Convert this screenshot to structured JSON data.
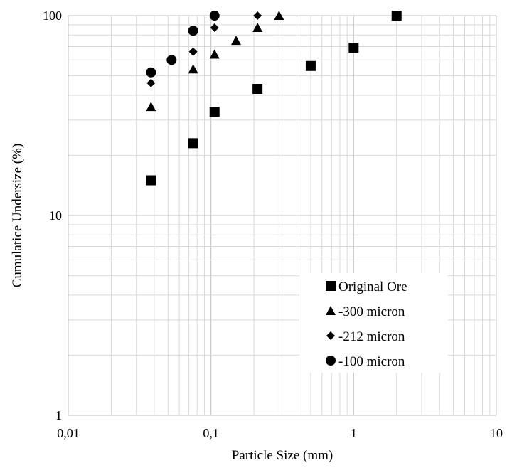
{
  "chart_data": {
    "type": "scatter",
    "title": "",
    "xlabel": "Particle Size (mm)",
    "ylabel": "Cumulatice Undersize (%)",
    "xscale": "log",
    "yscale": "log",
    "xlim": [
      0.01,
      10
    ],
    "ylim": [
      1,
      100
    ],
    "x_tick_values": [
      0.01,
      0.1,
      1,
      10
    ],
    "x_tick_labels": [
      "0,01",
      "0,1",
      "1",
      "10"
    ],
    "y_tick_values": [
      1,
      10,
      100
    ],
    "y_tick_labels": [
      "1",
      "10",
      "100"
    ],
    "grid": "major and minor",
    "legend_position": "bottom-right",
    "series": [
      {
        "name": "Original Ore",
        "marker": "square",
        "x": [
          0.038,
          0.075,
          0.106,
          0.212,
          0.5,
          1.0,
          2.0
        ],
        "y": [
          15,
          23,
          33,
          43,
          56,
          69,
          100
        ]
      },
      {
        "name": "-300 micron",
        "marker": "triangle",
        "x": [
          0.038,
          0.075,
          0.106,
          0.15,
          0.212,
          0.3
        ],
        "y": [
          35,
          54,
          64,
          75,
          87,
          100
        ]
      },
      {
        "name": "-212 micron",
        "marker": "diamond",
        "x": [
          0.038,
          0.075,
          0.106,
          0.212
        ],
        "y": [
          46,
          66,
          87,
          100
        ]
      },
      {
        "name": "-100 micron",
        "marker": "circle",
        "x": [
          0.038,
          0.053,
          0.075,
          0.106
        ],
        "y": [
          52,
          60,
          84,
          100
        ]
      }
    ]
  }
}
